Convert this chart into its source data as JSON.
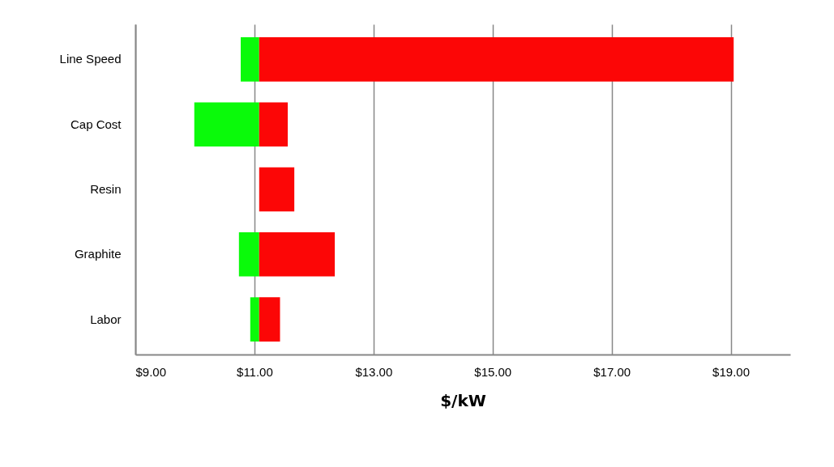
{
  "chart_data": {
    "type": "bar",
    "orientation": "horizontal",
    "categories": [
      "Line Speed",
      "Cap Cost",
      "Resin",
      "Graphite",
      "Labor"
    ],
    "series": [
      {
        "color": "#0afa0a",
        "base": [
          10.77,
          9.99,
          null,
          10.74,
          10.93
        ],
        "values": [
          0.31,
          1.09,
          null,
          0.34,
          0.15
        ]
      },
      {
        "color": "#fc0606",
        "base": [
          11.08,
          11.08,
          11.08,
          11.08,
          11.08
        ],
        "values": [
          7.97,
          0.48,
          0.59,
          1.27,
          0.35
        ]
      }
    ],
    "xlabel": "$/kW",
    "xlim": [
      9,
      20
    ],
    "xticks": [
      {
        "value": 9,
        "label": "$9.00"
      },
      {
        "value": 11,
        "label": "$11.00"
      },
      {
        "value": 13,
        "label": "$13.00"
      },
      {
        "value": 15,
        "label": "$15.00"
      },
      {
        "value": 17,
        "label": "$17.00"
      },
      {
        "value": 19,
        "label": "$19.00"
      }
    ],
    "grid": "x",
    "legend": false
  }
}
